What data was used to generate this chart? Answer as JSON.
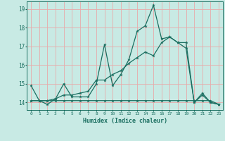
{
  "xlabel": "Humidex (Indice chaleur)",
  "xlim": [
    -0.5,
    23.5
  ],
  "ylim": [
    13.6,
    19.4
  ],
  "yticks": [
    14,
    15,
    16,
    17,
    18,
    19
  ],
  "xticks": [
    0,
    1,
    2,
    3,
    4,
    5,
    6,
    7,
    8,
    9,
    10,
    11,
    12,
    13,
    14,
    15,
    16,
    17,
    18,
    19,
    20,
    21,
    22,
    23
  ],
  "bg_color": "#c8eae4",
  "line_color": "#1a6e60",
  "grid_color": "#e8aaaa",
  "lines": [
    {
      "x": [
        0,
        1,
        2,
        3,
        4,
        5,
        6,
        7,
        8,
        9,
        10,
        11,
        12,
        13,
        14,
        15,
        16,
        17,
        18,
        19,
        20,
        21,
        22,
        23
      ],
      "y": [
        14.9,
        14.1,
        13.9,
        14.2,
        15.0,
        14.3,
        14.3,
        14.3,
        15.0,
        17.1,
        14.9,
        15.5,
        16.3,
        17.8,
        18.1,
        19.2,
        17.4,
        17.5,
        17.2,
        16.9,
        14.0,
        14.5,
        14.0,
        13.9
      ]
    },
    {
      "x": [
        0,
        1,
        2,
        3,
        4,
        5,
        6,
        7,
        8,
        9,
        10,
        11,
        12,
        13,
        14,
        15,
        16,
        17,
        18,
        19,
        20,
        21,
        22,
        23
      ],
      "y": [
        14.1,
        14.1,
        14.1,
        14.2,
        14.4,
        14.4,
        14.5,
        14.6,
        15.2,
        15.2,
        15.5,
        15.7,
        16.1,
        16.4,
        16.7,
        16.5,
        17.2,
        17.5,
        17.2,
        17.2,
        14.0,
        14.4,
        14.0,
        13.9
      ]
    },
    {
      "x": [
        0,
        1,
        2,
        3,
        4,
        5,
        6,
        7,
        8,
        9,
        10,
        11,
        12,
        13,
        14,
        15,
        16,
        17,
        18,
        19,
        20,
        21,
        22,
        23
      ],
      "y": [
        14.1,
        14.1,
        14.1,
        14.1,
        14.1,
        14.1,
        14.1,
        14.1,
        14.1,
        14.1,
        14.1,
        14.1,
        14.1,
        14.1,
        14.1,
        14.1,
        14.1,
        14.1,
        14.1,
        14.1,
        14.1,
        14.1,
        14.1,
        13.9
      ]
    }
  ]
}
